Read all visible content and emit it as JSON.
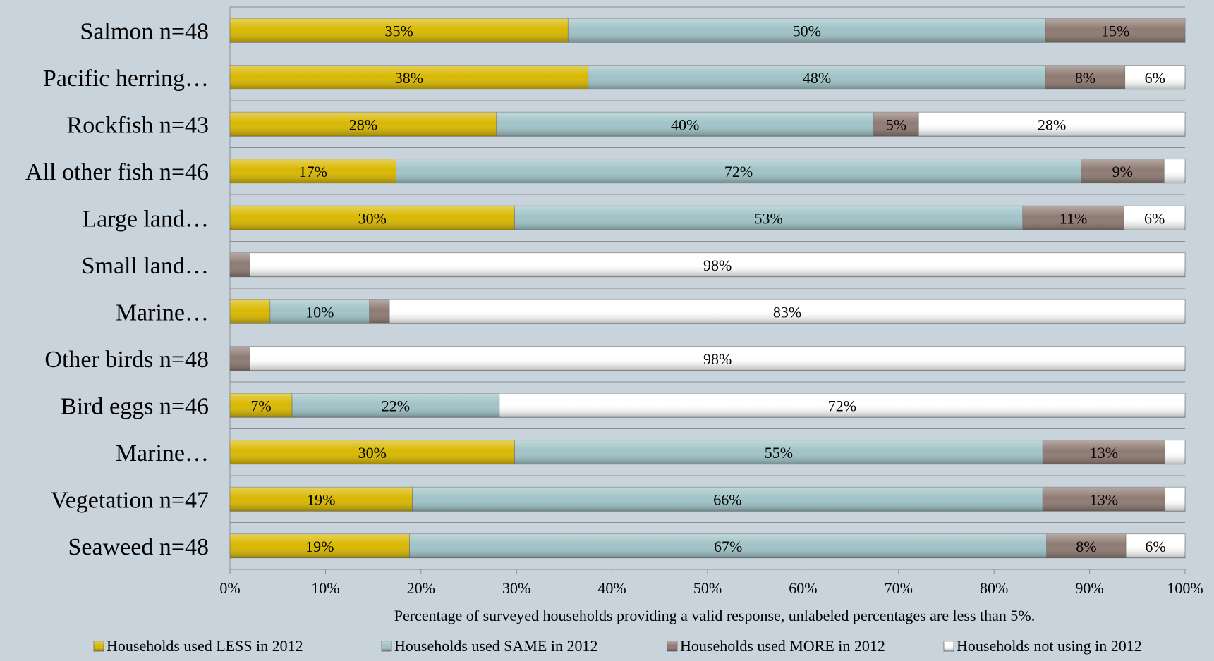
{
  "chart_data": {
    "type": "bar",
    "orientation": "horizontal",
    "stacked": "percent",
    "categories": [
      "Salmon n=48",
      "Pacific herring…",
      "Rockfish n=43",
      "All other fish n=46",
      "Large land…",
      "Small land…",
      "Marine…",
      "Other birds n=48",
      "Bird eggs n=46",
      "Marine…",
      "Vegetation n=47",
      "Seaweed n=48"
    ],
    "series": [
      {
        "name": "Households used LESS in 2012",
        "color": "#d9b800",
        "values": [
          35.4,
          37.5,
          27.9,
          17.4,
          29.8,
          0,
          4.2,
          0,
          6.5,
          29.8,
          19.1,
          18.8
        ],
        "labels": [
          "35%",
          "38%",
          "28%",
          "17%",
          "30%",
          "",
          "",
          "",
          "7%",
          "30%",
          "19%",
          "19%"
        ]
      },
      {
        "name": "Households used SAME in 2012",
        "color": "#9fc3c7",
        "values": [
          50.0,
          47.9,
          39.5,
          71.7,
          53.2,
          0,
          10.4,
          0,
          21.7,
          55.3,
          66.0,
          66.7
        ],
        "labels": [
          "50%",
          "48%",
          "40%",
          "72%",
          "53%",
          "",
          "10%",
          "",
          "22%",
          "55%",
          "66%",
          "67%"
        ]
      },
      {
        "name": "Households used MORE in 2012",
        "color": "#8e7a72",
        "values": [
          14.6,
          8.3,
          4.7,
          8.7,
          10.6,
          2.1,
          2.1,
          2.1,
          0,
          12.8,
          12.8,
          8.3
        ],
        "labels": [
          "15%",
          "8%",
          "5%",
          "9%",
          "11%",
          "",
          "",
          "",
          "",
          "13%",
          "13%",
          "8%"
        ]
      },
      {
        "name": "Households not using in 2012",
        "color": "#ffffff",
        "values": [
          0,
          6.3,
          27.9,
          2.2,
          6.4,
          97.9,
          83.3,
          97.9,
          71.8,
          2.1,
          2.1,
          6.2
        ],
        "labels": [
          "",
          "6%",
          "28%",
          "",
          "6%",
          "98%",
          "83%",
          "98%",
          "72%",
          "",
          "",
          "6%"
        ]
      }
    ],
    "xlim": [
      0,
      100
    ],
    "xticks": [
      "0%",
      "10%",
      "20%",
      "30%",
      "40%",
      "50%",
      "60%",
      "70%",
      "80%",
      "90%",
      "100%"
    ],
    "xlabel": "Percentage of  surveyed households providing a valid response, unlabeled percentages are  less than 5%.",
    "ylabel": "",
    "title": "",
    "grid": "horizontal separators between categories",
    "legend": "bottom"
  }
}
